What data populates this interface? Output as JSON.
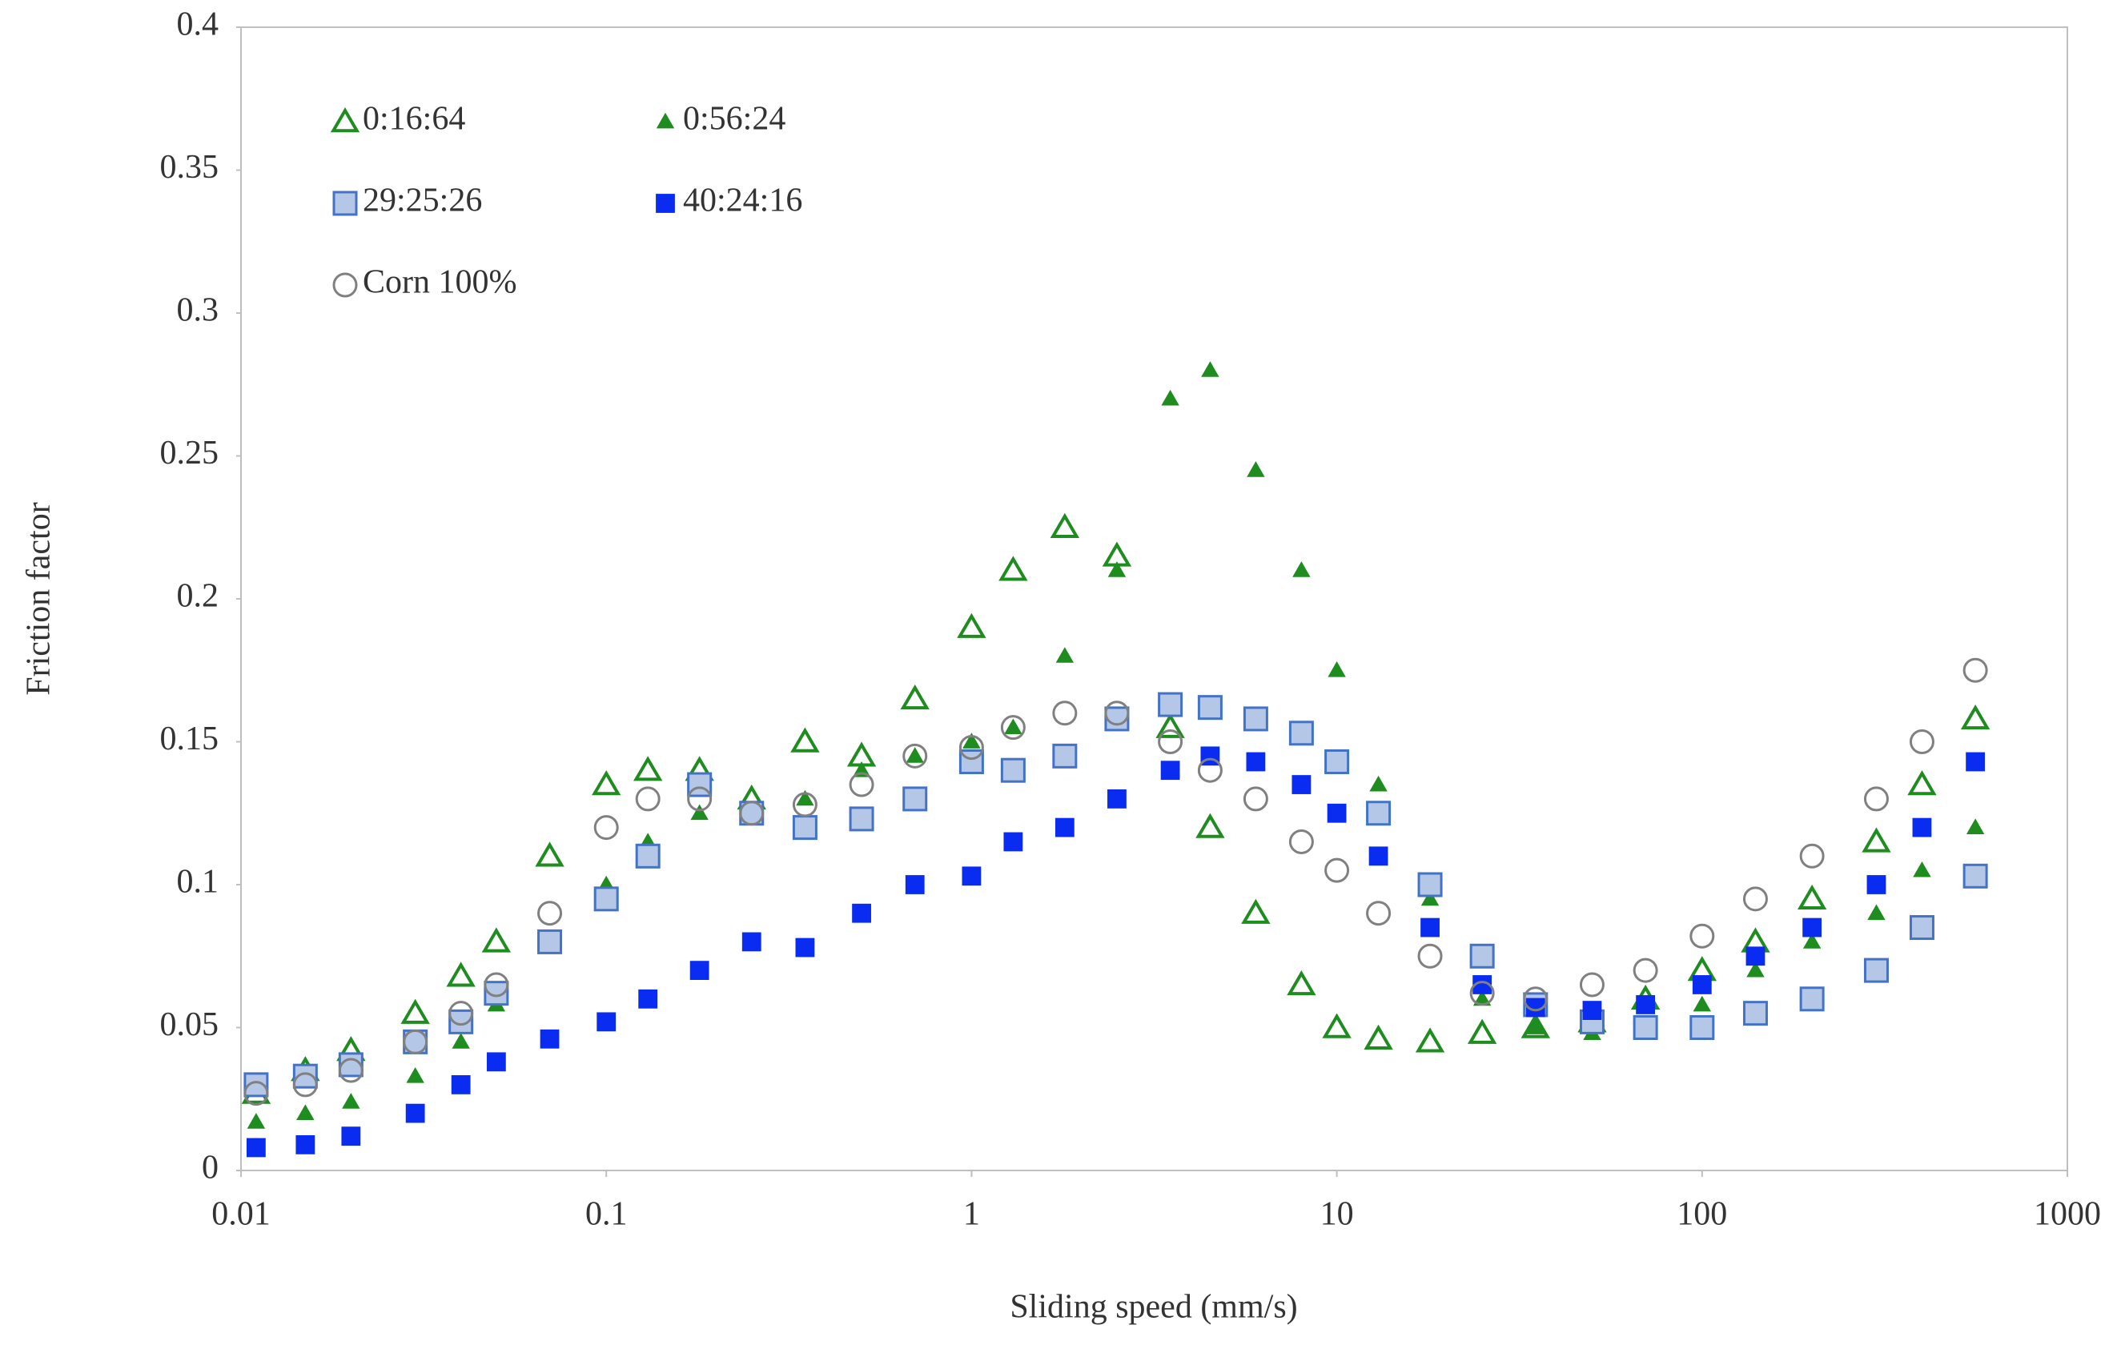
{
  "chart_data": {
    "type": "scatter",
    "xlabel": "Sliding speed (mm/s)",
    "ylabel": "Friction factor",
    "xscale": "log",
    "xlim": [
      0.01,
      1000
    ],
    "ylim": [
      0,
      0.4
    ],
    "xticks": [
      0.01,
      0.1,
      1,
      10,
      100,
      1000
    ],
    "yticks": [
      0,
      0.05,
      0.1,
      0.15,
      0.2,
      0.25,
      0.3,
      0.35,
      0.4
    ],
    "grid": false,
    "legend": "upper left",
    "x": [
      0.011,
      0.015,
      0.02,
      0.03,
      0.04,
      0.05,
      0.07,
      0.1,
      0.13,
      0.18,
      0.25,
      0.35,
      0.5,
      0.7,
      1,
      1.3,
      1.8,
      2.5,
      3.5,
      4.5,
      6,
      8,
      10,
      13,
      18,
      25,
      35,
      50,
      70,
      100,
      140,
      200,
      300,
      400,
      560
    ],
    "series": [
      {
        "name": "0:16:64",
        "color": "#1e8c1e",
        "marker": "triangle-open",
        "values": [
          0.027,
          0.035,
          0.042,
          0.055,
          0.068,
          0.08,
          0.11,
          0.135,
          0.14,
          0.14,
          0.13,
          0.15,
          0.145,
          0.165,
          0.19,
          0.21,
          0.225,
          0.215,
          0.155,
          0.12,
          0.09,
          0.065,
          0.05,
          0.046,
          0.045,
          0.048,
          0.05,
          0.052,
          0.06,
          0.07,
          0.08,
          0.095,
          0.115,
          0.135,
          0.158
        ]
      },
      {
        "name": "0:56:24",
        "color": "#1e8c1e",
        "marker": "triangle-filled",
        "values": [
          0.017,
          0.02,
          0.024,
          0.033,
          0.045,
          0.058,
          0.08,
          0.1,
          0.115,
          0.125,
          0.125,
          0.13,
          0.14,
          0.145,
          0.15,
          0.155,
          0.18,
          0.21,
          0.27,
          0.28,
          0.245,
          0.21,
          0.175,
          0.135,
          0.095,
          0.06,
          0.05,
          0.048,
          0.05,
          0.058,
          0.07,
          0.08,
          0.09,
          0.105,
          0.12
        ]
      },
      {
        "name": "29:25:26",
        "color": "#4472c4",
        "fill": "#b4c7e7",
        "marker": "square-open",
        "values": [
          0.03,
          0.033,
          0.037,
          0.045,
          0.052,
          0.062,
          0.08,
          0.095,
          0.11,
          0.135,
          0.125,
          0.12,
          0.123,
          0.13,
          0.143,
          0.14,
          0.145,
          0.158,
          0.163,
          0.162,
          0.158,
          0.153,
          0.143,
          0.125,
          0.1,
          0.075,
          0.058,
          0.052,
          0.05,
          0.05,
          0.055,
          0.06,
          0.07,
          0.085,
          0.103
        ]
      },
      {
        "name": "40:24:16",
        "color": "#0a2cf0",
        "marker": "square-filled",
        "values": [
          0.008,
          0.009,
          0.012,
          0.02,
          0.03,
          0.038,
          0.046,
          0.052,
          0.06,
          0.07,
          0.08,
          0.078,
          0.09,
          0.1,
          0.103,
          0.115,
          0.12,
          0.13,
          0.14,
          0.145,
          0.143,
          0.135,
          0.125,
          0.11,
          0.085,
          0.065,
          0.057,
          0.056,
          0.058,
          0.065,
          0.075,
          0.085,
          0.1,
          0.12,
          0.143
        ]
      },
      {
        "name": "Corn 100%",
        "color": "#808080",
        "marker": "circle-open",
        "values": [
          0.027,
          0.03,
          0.035,
          0.045,
          0.055,
          0.065,
          0.09,
          0.12,
          0.13,
          0.13,
          0.125,
          0.128,
          0.135,
          0.145,
          0.148,
          0.155,
          0.16,
          0.16,
          0.15,
          0.14,
          0.13,
          0.115,
          0.105,
          0.09,
          0.075,
          0.062,
          0.06,
          0.065,
          0.07,
          0.082,
          0.095,
          0.11,
          0.13,
          0.15,
          0.175
        ]
      }
    ]
  }
}
